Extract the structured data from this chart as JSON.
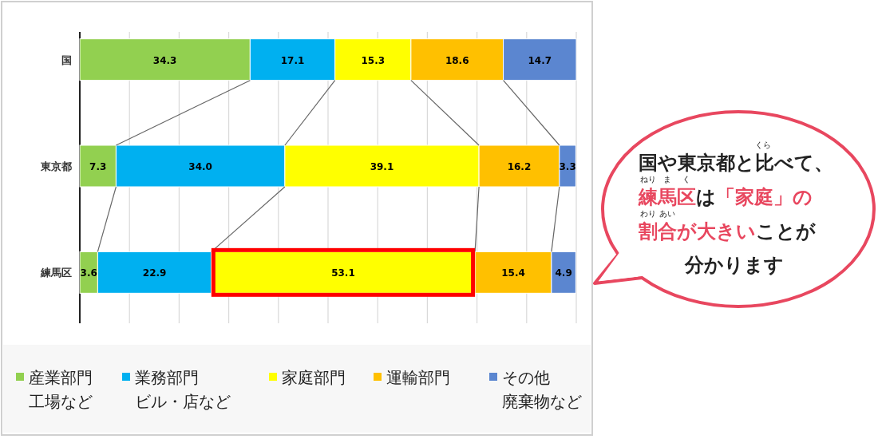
{
  "chart_data": {
    "type": "bar",
    "orientation": "horizontal",
    "stacked": true,
    "categories": [
      "国",
      "東京都",
      "練馬区"
    ],
    "series": [
      {
        "name": "産業部門",
        "color": "#92d050",
        "values": [
          34.3,
          7.3,
          3.6
        ],
        "value_labels": [
          "34.3",
          "7.3",
          "3.6"
        ]
      },
      {
        "name": "業務部門",
        "color": "#00b0f0",
        "values": [
          17.1,
          34.0,
          22.9
        ],
        "value_labels": [
          "17.1",
          "34.0",
          "22.9"
        ]
      },
      {
        "name": "家庭部門",
        "color": "#ffff00",
        "values": [
          15.3,
          39.1,
          53.1
        ],
        "value_labels": [
          "15.3",
          "39.1",
          "53.1"
        ]
      },
      {
        "name": "運輸部門",
        "color": "#ffc000",
        "values": [
          18.6,
          16.2,
          15.4
        ],
        "value_labels": [
          "18.6",
          "16.2",
          "15.4"
        ]
      },
      {
        "name": "その他",
        "color": "#5b86d0",
        "values": [
          14.7,
          3.3,
          4.9
        ],
        "value_labels": [
          "14.7",
          "3.3",
          "4.9"
        ]
      }
    ],
    "xlim": [
      0,
      100
    ],
    "xticks": [
      {
        "value": 0,
        "label": null
      },
      {
        "value": 10,
        "label": null
      },
      {
        "value": 20,
        "label": null
      },
      {
        "value": 30,
        "label": null
      },
      {
        "value": 40,
        "label": null
      },
      {
        "value": 50,
        "label": null
      },
      {
        "value": 60,
        "label": null
      },
      {
        "value": 70,
        "label": null
      },
      {
        "value": 80,
        "label": null
      },
      {
        "value": 90,
        "label": null
      },
      {
        "value": 100,
        "label": null
      }
    ],
    "grid": "x",
    "tick_labels": "y",
    "legend": "bottom",
    "annotations": [
      "国や東京都と比べて、",
      "くら",
      "練馬区",
      "は",
      "「家庭」",
      "の",
      "ねり",
      "ま",
      "く",
      "割合が大きい",
      "ことが",
      "わり",
      "あい",
      "分かります",
      "工場など",
      "ビル・店など",
      "廃棄物など"
    ]
  }
}
